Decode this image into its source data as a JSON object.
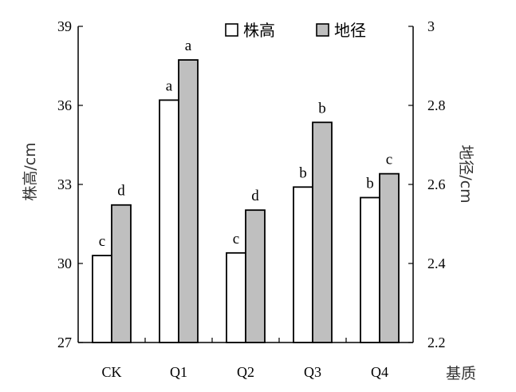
{
  "chart_data": {
    "type": "bar",
    "categories": [
      "CK",
      "Q1",
      "Q2",
      "Q3",
      "Q4"
    ],
    "xlabel": "基质",
    "y_left": {
      "label": "株高/cm",
      "range": [
        27,
        39
      ],
      "ticks": [
        27,
        30,
        33,
        36,
        39
      ]
    },
    "y_right": {
      "label": "地径/cm",
      "range": [
        2.2,
        3.0
      ],
      "ticks": [
        "2.2",
        "2.4",
        "2.6",
        "2.8",
        "3"
      ]
    },
    "series": [
      {
        "name": "株高",
        "axis": "left",
        "color": "#ffffff",
        "values": [
          30.3,
          36.2,
          30.4,
          32.9,
          32.5
        ],
        "labels": [
          "c",
          "a",
          "c",
          "b",
          "b"
        ]
      },
      {
        "name": "地径",
        "axis": "right",
        "color": "#bfbfbf",
        "values": [
          2.548,
          2.915,
          2.535,
          2.757,
          2.627
        ],
        "labels": [
          "d",
          "a",
          "d",
          "b",
          "c"
        ]
      }
    ],
    "legend": "top-center",
    "grid": false
  }
}
